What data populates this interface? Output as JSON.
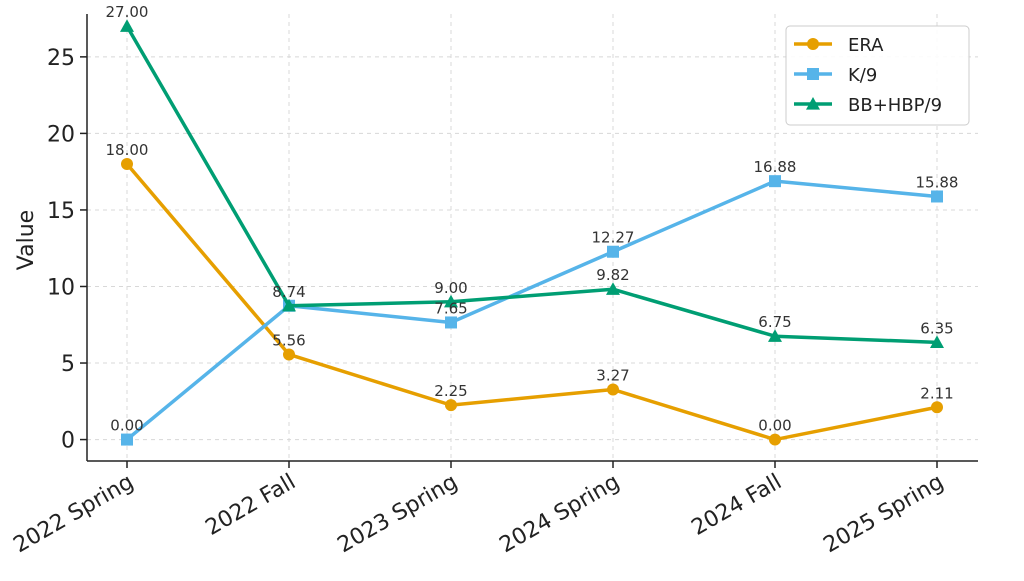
{
  "chart_data": {
    "type": "line",
    "title": "",
    "xlabel": "",
    "ylabel": "Value",
    "categories": [
      "2022 Spring",
      "2022 Fall",
      "2023 Spring",
      "2024 Spring",
      "2024 Fall",
      "2025 Spring"
    ],
    "ylim": [
      -1.4,
      27.8
    ],
    "yticks": [
      0,
      5,
      10,
      15,
      20,
      25
    ],
    "grid": true,
    "legend_position": "top-right",
    "series": [
      {
        "name": "ERA",
        "color": "#E69F00",
        "marker": "circle",
        "values": [
          18.0,
          5.56,
          2.25,
          3.27,
          0.0,
          2.11
        ],
        "labels": [
          "18.00",
          "5.56",
          "2.25",
          "3.27",
          "0.00",
          "2.11"
        ]
      },
      {
        "name": "K/9",
        "color": "#56B4E9",
        "marker": "square",
        "values": [
          0.0,
          8.74,
          7.65,
          12.27,
          16.88,
          15.88
        ],
        "labels": [
          "0.00",
          "8.74",
          "7.65",
          "12.27",
          "16.88",
          "15.88"
        ]
      },
      {
        "name": "BB+HBP/9",
        "color": "#009E73",
        "marker": "triangle",
        "values": [
          27.0,
          8.74,
          9.0,
          9.82,
          6.75,
          6.35
        ],
        "labels": [
          "27.00",
          "",
          "9.00",
          "9.82",
          "6.75",
          "6.35"
        ]
      }
    ]
  }
}
